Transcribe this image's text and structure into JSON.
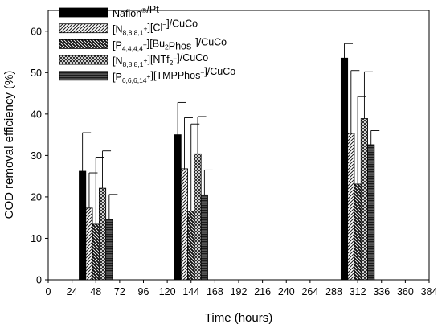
{
  "chart_data": {
    "type": "bar",
    "xlabel": "Time (hours)",
    "ylabel": "COD removal efficiency (%)",
    "xlim": [
      0,
      384
    ],
    "ylim": [
      0,
      65
    ],
    "xticks": [
      0,
      24,
      48,
      72,
      96,
      120,
      144,
      168,
      192,
      216,
      240,
      264,
      288,
      312,
      336,
      360,
      384
    ],
    "yticks": [
      0,
      10,
      20,
      30,
      40,
      50,
      60
    ],
    "grid": false,
    "legend_position": "top-left",
    "groups_at_hours": [
      48,
      144,
      312
    ],
    "series": [
      {
        "name": "Nafion®/Pt",
        "legend_parts": [
          [
            "Nafion",
            ""
          ],
          [
            "®",
            "sup"
          ],
          [
            "/Pt",
            ""
          ]
        ],
        "pattern": "solid-black",
        "values": [
          26.2,
          35.0,
          53.5
        ],
        "errors": [
          9.3,
          7.8,
          3.5
        ]
      },
      {
        "name": "[N8,8,8,1+][Cl−]/CuCo",
        "legend_parts": [
          [
            "[N",
            ""
          ],
          [
            "8,8,8,1",
            "sub"
          ],
          [
            "+",
            "sup"
          ],
          [
            "][Cl",
            ""
          ],
          [
            "−",
            "sup"
          ],
          [
            "]/CuCo",
            ""
          ]
        ],
        "pattern": "hatch-light",
        "values": [
          17.3,
          26.8,
          35.3
        ],
        "errors": [
          8.5,
          12.3,
          15.2
        ]
      },
      {
        "name": "[P4,4,4,4+][Bu2Phos−]/CuCo",
        "legend_parts": [
          [
            "[P",
            ""
          ],
          [
            "4,4,4,4",
            "sub"
          ],
          [
            "+",
            "sup"
          ],
          [
            "][Bu",
            ""
          ],
          [
            "2",
            "sub"
          ],
          [
            "Phos",
            ""
          ],
          [
            "−",
            "sup"
          ],
          [
            "]/CuCo",
            ""
          ]
        ],
        "pattern": "hatch-dark",
        "values": [
          13.4,
          16.6,
          23.1
        ],
        "errors": [
          16.2,
          21.0,
          21.1
        ]
      },
      {
        "name": "[N8,8,8,1+][NTf2−]/CuCo",
        "legend_parts": [
          [
            "[N",
            ""
          ],
          [
            "8,8,8,1",
            "sub"
          ],
          [
            "+",
            "sup"
          ],
          [
            "][NTf",
            ""
          ],
          [
            "2",
            "sub"
          ],
          [
            "−",
            "sup"
          ],
          [
            "]/CuCo",
            ""
          ]
        ],
        "pattern": "crosshatch",
        "values": [
          22.1,
          30.4,
          38.9
        ],
        "errors": [
          9.0,
          9.0,
          11.3
        ]
      },
      {
        "name": "[P6,6,6,14+][TMPPhos−]/CuCo",
        "legend_parts": [
          [
            "[P",
            ""
          ],
          [
            "6,6,6,14",
            "sub"
          ],
          [
            "+",
            "sup"
          ],
          [
            "][TMPPhos",
            ""
          ],
          [
            "−",
            "sup"
          ],
          [
            "]/CuCo",
            ""
          ]
        ],
        "pattern": "horizontal-stripes",
        "values": [
          14.6,
          20.5,
          32.6
        ],
        "errors": [
          6.0,
          6.0,
          3.4
        ]
      }
    ]
  }
}
